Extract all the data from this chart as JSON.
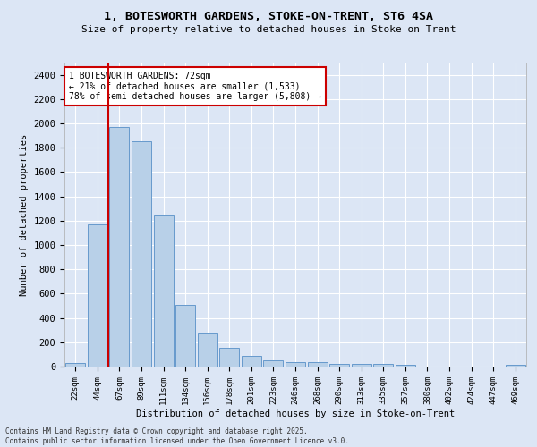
{
  "title_line1": "1, BOTESWORTH GARDENS, STOKE-ON-TRENT, ST6 4SA",
  "title_line2": "Size of property relative to detached houses in Stoke-on-Trent",
  "xlabel": "Distribution of detached houses by size in Stoke-on-Trent",
  "ylabel": "Number of detached properties",
  "categories": [
    "22sqm",
    "44sqm",
    "67sqm",
    "89sqm",
    "111sqm",
    "134sqm",
    "156sqm",
    "178sqm",
    "201sqm",
    "223sqm",
    "246sqm",
    "268sqm",
    "290sqm",
    "313sqm",
    "335sqm",
    "357sqm",
    "380sqm",
    "402sqm",
    "424sqm",
    "447sqm",
    "469sqm"
  ],
  "values": [
    30,
    1170,
    1970,
    1850,
    1240,
    510,
    270,
    155,
    90,
    50,
    40,
    35,
    20,
    20,
    20,
    15,
    0,
    0,
    0,
    0,
    15
  ],
  "bar_color": "#b8d0e8",
  "bar_edge_color": "#6699cc",
  "red_line_x": 1.5,
  "annotation_text": "1 BOTESWORTH GARDENS: 72sqm\n← 21% of detached houses are smaller (1,533)\n78% of semi-detached houses are larger (5,808) →",
  "annotation_box_color": "#ffffff",
  "annotation_box_edge_color": "#cc0000",
  "background_color": "#dce6f5",
  "plot_bg_color": "#dce6f5",
  "grid_color": "#ffffff",
  "footer_line1": "Contains HM Land Registry data © Crown copyright and database right 2025.",
  "footer_line2": "Contains public sector information licensed under the Open Government Licence v3.0.",
  "ylim": [
    0,
    2500
  ],
  "yticks": [
    0,
    200,
    400,
    600,
    800,
    1000,
    1200,
    1400,
    1600,
    1800,
    2000,
    2200,
    2400
  ]
}
